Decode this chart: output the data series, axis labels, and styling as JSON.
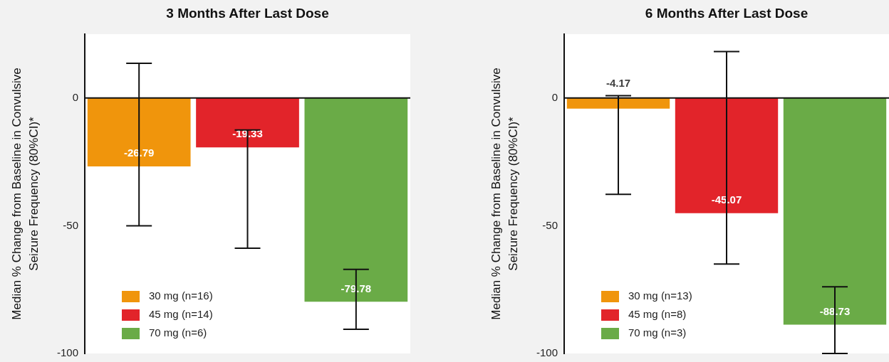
{
  "chart_data": [
    {
      "type": "bar",
      "title": "3 Months After Last Dose",
      "ylabel": "Median % Change from Baseline in Convulsive Seizure Frequency (80%CI)*",
      "categories": [
        null,
        null,
        null
      ],
      "stacked": true,
      "ylim": [
        -100,
        25
      ],
      "yticks": [
        0,
        -50,
        -100
      ],
      "legend": "bottom left",
      "data_labels": true,
      "tick_labels": "y",
      "series": [
        {
          "name": "30 mg (n=16)",
          "color": "#f0950c",
          "values": [
            -26.79,
            null,
            null
          ],
          "errors": [
            [
              -50,
              13.6
            ],
            null,
            null
          ]
        },
        {
          "name": "45 mg (n=14)",
          "color": "#e2242a",
          "values": [
            null,
            -19.33,
            null
          ],
          "errors": [
            null,
            [
              -58.8,
              -12.5
            ],
            null
          ]
        },
        {
          "name": "70 mg (n=6)",
          "color": "#6aab47",
          "values": [
            null,
            null,
            -79.78
          ],
          "errors": [
            null,
            null,
            [
              -90.5,
              -67.1
            ]
          ]
        }
      ]
    },
    {
      "type": "bar",
      "title": "6 Months After Last Dose",
      "ylabel": "Median % Change from Baseline in Convulsive Seizure Frequency (80%CI)*",
      "categories": [
        null,
        null,
        null
      ],
      "stacked": true,
      "ylim": [
        -100,
        25
      ],
      "yticks": [
        0,
        -50,
        -100
      ],
      "legend": "bottom left",
      "data_labels": true,
      "tick_labels": "y",
      "series": [
        {
          "name": "30 mg (n=13)",
          "color": "#f0950c",
          "values": [
            -4.17,
            null,
            null
          ],
          "errors": [
            [
              -37.7,
              0.9
            ],
            null,
            null
          ]
        },
        {
          "name": "45 mg (n=8)",
          "color": "#e2242a",
          "values": [
            null,
            -45.07,
            null
          ],
          "errors": [
            null,
            [
              -65,
              18.2
            ],
            null
          ]
        },
        {
          "name": "70 mg (n=3)",
          "color": "#6aab47",
          "values": [
            null,
            null,
            -88.73
          ],
          "errors": [
            null,
            null,
            [
              -100,
              -73.9
            ]
          ]
        }
      ]
    }
  ]
}
